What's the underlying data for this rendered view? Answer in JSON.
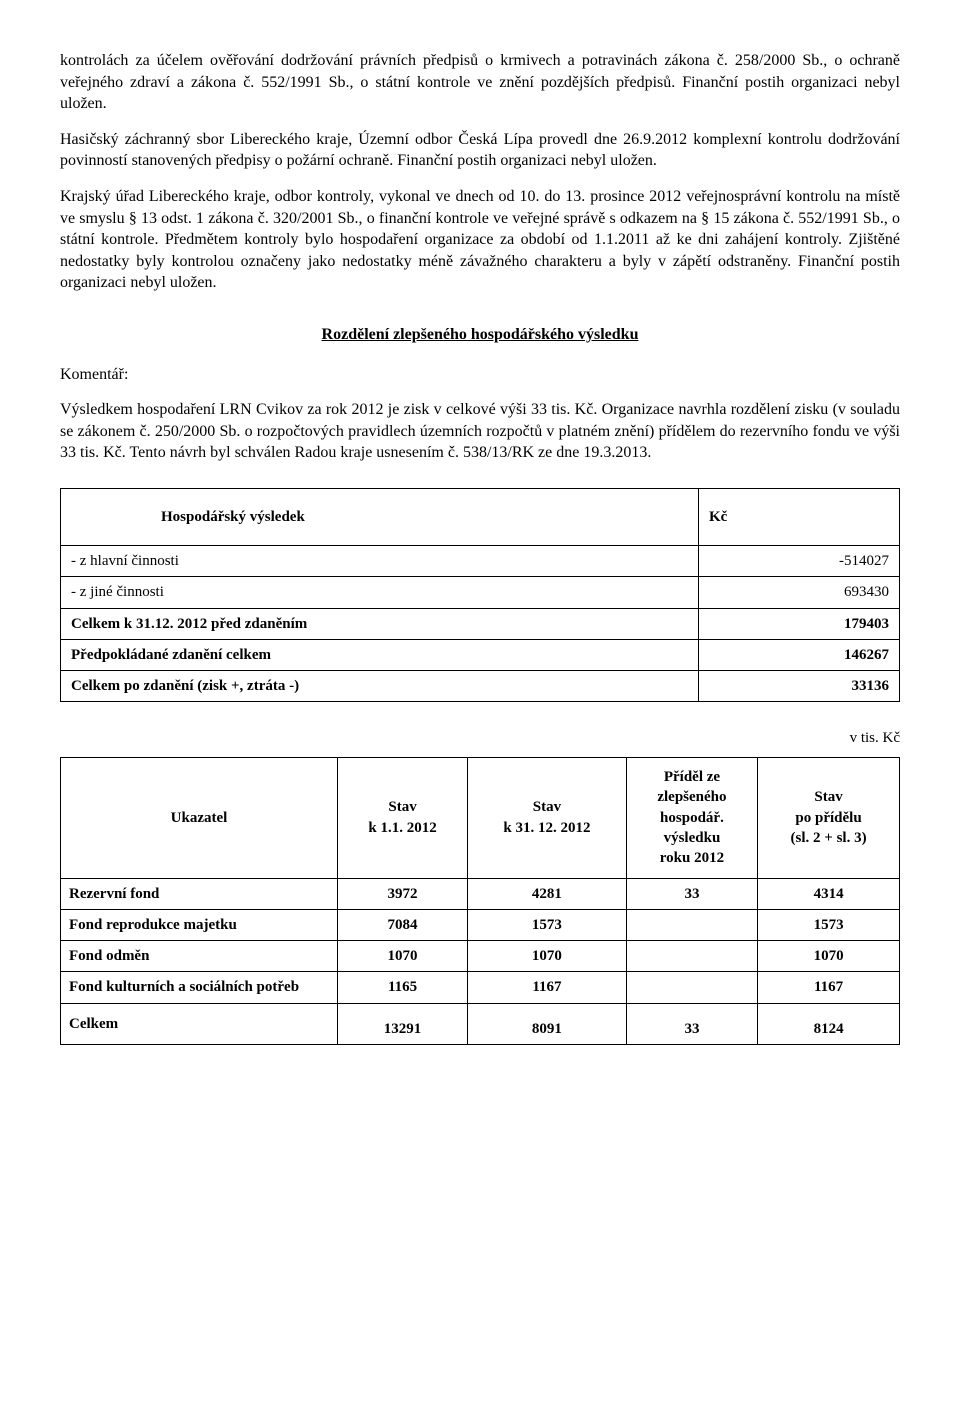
{
  "paragraphs": {
    "p1": "kontrolách za účelem ověřování  dodržování právních předpisů o krmivech a potravinách zákona č. 258/2000 Sb., o ochraně veřejného zdraví a zákona č. 552/1991 Sb., o státní kontrole ve znění pozdějších předpisů. Finanční postih organizaci nebyl uložen.",
    "p2": "Hasičský záchranný sbor Libereckého kraje, Územní odbor Česká Lípa provedl dne 26.9.2012 komplexní kontrolu dodržování povinností stanovených předpisy o požární ochraně. Finanční postih organizaci nebyl uložen.",
    "p3": "Krajský úřad Libereckého kraje, odbor kontroly, vykonal ve dnech od 10. do 13. prosince 2012 veřejnosprávní kontrolu na místě ve smyslu § 13 odst. 1 zákona č. 320/2001 Sb., o finanční kontrole ve veřejné správě s odkazem na § 15 zákona č. 552/1991 Sb., o státní kontrole. Předmětem kontroly bylo hospodaření organizace za období od 1.1.2011 až ke dni zahájení kontroly. Zjištěné nedostatky byly kontrolou označeny jako nedostatky méně závažného charakteru a byly v zápětí odstraněny. Finanční postih organizaci nebyl uložen."
  },
  "section_title": "Rozdělení zlepšeného hospodářského výsledku",
  "komentar_label": "Komentář:",
  "komentar_text": "Výsledkem hospodaření LRN Cvikov za rok 2012 je zisk v celkové výši 33 tis. Kč. Organizace navrhla rozdělení zisku (v souladu se zákonem č. 250/2000 Sb. o rozpočtových pravidlech územních rozpočtů v platném znění) přídělem do rezervního fondu ve výši 33 tis. Kč. Tento návrh byl schválen Radou kraje usnesením č. 538/13/RK ze dne 19.3.2013.",
  "hv_table": {
    "header": {
      "col1": "Hospodářský výsledek",
      "col2": "Kč"
    },
    "rows": [
      {
        "label": " - z hlavní činnosti",
        "value": "-514027",
        "bold": false
      },
      {
        "label": " - z jiné činnosti",
        "value": "693430",
        "bold": false
      },
      {
        "label": "Celkem k 31.12. 2012 před zdaněním",
        "value": "179403",
        "bold": true
      },
      {
        "label": "Předpokládané zdanění celkem",
        "value": "146267",
        "bold": true
      },
      {
        "label": "Celkem po zdanění (zisk +, ztráta -)",
        "value": "33136",
        "bold": true
      }
    ]
  },
  "vtiskc": "v tis. Kč",
  "fund_table": {
    "headers": {
      "c1": "Ukazatel",
      "c2": "Stav\nk 1.1. 2012",
      "c3": "Stav\nk 31. 12. 2012",
      "c4": "Příděl ze\nzlepšeného\nhospodář.\nvýsledku\nroku 2012",
      "c5": "Stav\npo přídělu\n(sl. 2 + sl. 3)"
    },
    "rows": [
      {
        "label": "Rezervní fond",
        "v1": "3972",
        "v2": "4281",
        "v3": "33",
        "v4": "4314",
        "bold": true
      },
      {
        "label": "Fond reprodukce majetku",
        "v1": "7084",
        "v2": "1573",
        "v3": "",
        "v4": "1573",
        "bold": true
      },
      {
        "label": "Fond odměn",
        "v1": "1070",
        "v2": "1070",
        "v3": "",
        "v4": "1070",
        "bold": true
      },
      {
        "label": "Fond kulturních a sociálních potřeb",
        "v1": "1165",
        "v2": "1167",
        "v3": "",
        "v4": "1167",
        "bold": true
      },
      {
        "label": "Celkem",
        "v1": "13291",
        "v2": "8091",
        "v3": "33",
        "v4": "8124",
        "bold": true
      }
    ]
  }
}
